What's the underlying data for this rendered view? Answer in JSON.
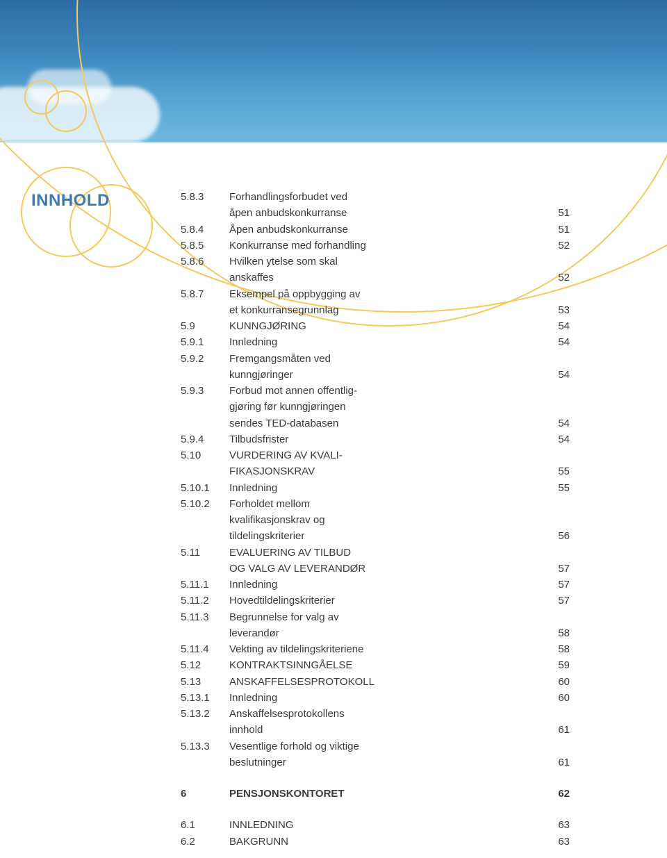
{
  "colors": {
    "sky_top": "#2b6ba3",
    "sky_bottom": "#6fb8e0",
    "accent_gold": "#f4c95d",
    "title_blue": "#3d7ab0",
    "text": "#3a3a3a",
    "page_bg": "#ffffff"
  },
  "typography": {
    "body_fontsize": 15,
    "title_fontsize": 24,
    "line_height": 1.55,
    "font_family": "Arial"
  },
  "title": "INNHOLD",
  "toc": [
    {
      "num": "5.8.3",
      "label": "Forhandlingsforbudet ved",
      "page": ""
    },
    {
      "num": "",
      "label": "åpen anbudskonkurranse",
      "page": "51"
    },
    {
      "num": "5.8.4",
      "label": "Åpen anbudskonkurranse",
      "page": "51"
    },
    {
      "num": "5.8.5",
      "label": "Konkurranse med forhandling",
      "page": "52"
    },
    {
      "num": "5.8.6",
      "label": "Hvilken ytelse som skal",
      "page": ""
    },
    {
      "num": "",
      "label": "anskaffes",
      "page": "52"
    },
    {
      "num": "5.8.7",
      "label": "Eksempel på oppbygging av",
      "page": ""
    },
    {
      "num": "",
      "label": "et konkurransegrunnlag",
      "page": "53"
    },
    {
      "num": "5.9",
      "label": "KUNNGJØRING",
      "page": "54"
    },
    {
      "num": "5.9.1",
      "label": "Innledning",
      "page": "54"
    },
    {
      "num": "5.9.2",
      "label": "Fremgangsmåten ved",
      "page": ""
    },
    {
      "num": "",
      "label": "kunngjøringer",
      "page": "54"
    },
    {
      "num": "5.9.3",
      "label": "Forbud mot annen offentlig-",
      "page": ""
    },
    {
      "num": "",
      "label": "gjøring før kunngjøringen",
      "page": ""
    },
    {
      "num": "",
      "label": "sendes TED-databasen",
      "page": "54"
    },
    {
      "num": "5.9.4",
      "label": "Tilbudsfrister",
      "page": "54"
    },
    {
      "num": "5.10",
      "label": "VURDERING AV KVALI-",
      "page": ""
    },
    {
      "num": "",
      "label": "FIKASJONSKRAV",
      "page": "55"
    },
    {
      "num": "5.10.1",
      "label": "Innledning",
      "page": "55"
    },
    {
      "num": "5.10.2",
      "label": "Forholdet mellom",
      "page": ""
    },
    {
      "num": "",
      "label": "kvalifikasjonskrav og",
      "page": ""
    },
    {
      "num": "",
      "label": "tildelingskriterier",
      "page": "56"
    },
    {
      "num": "5.11",
      "label": "EVALUERING AV TILBUD",
      "page": ""
    },
    {
      "num": "",
      "label": "OG VALG AV LEVERANDØR",
      "page": "57"
    },
    {
      "num": "5.11.1",
      "label": "Innledning",
      "page": "57"
    },
    {
      "num": "5.11.2",
      "label": "Hovedtildelingskriterier",
      "page": "57"
    },
    {
      "num": "5.11.3",
      "label": "Begrunnelse for valg av",
      "page": ""
    },
    {
      "num": "",
      "label": "leverandør",
      "page": "58"
    },
    {
      "num": "5.11.4",
      "label": "Vekting av tildelingskriteriene",
      "page": "58"
    },
    {
      "num": "5.12",
      "label": "KONTRAKTSINNGÅELSE",
      "page": "59"
    },
    {
      "num": "5.13",
      "label": "ANSKAFFELSESPROTOKOLL",
      "page": "60"
    },
    {
      "num": "5.13.1",
      "label": "Innledning",
      "page": "60"
    },
    {
      "num": "5.13.2",
      "label": "Anskaffelsesprotokollens",
      "page": ""
    },
    {
      "num": "",
      "label": "innhold",
      "page": "61"
    },
    {
      "num": "5.13.3",
      "label": "Vesentlige forhold og viktige",
      "page": ""
    },
    {
      "num": "",
      "label": "beslutninger",
      "page": "61"
    }
  ],
  "section6": {
    "num": "6",
    "label": "PENSJONSKONTORET",
    "page": "62",
    "bold": true
  },
  "tail": [
    {
      "num": "6.1",
      "label": "INNLEDNING",
      "page": "63"
    },
    {
      "num": "6.2",
      "label": "BAKGRUNN",
      "page": "63"
    }
  ]
}
